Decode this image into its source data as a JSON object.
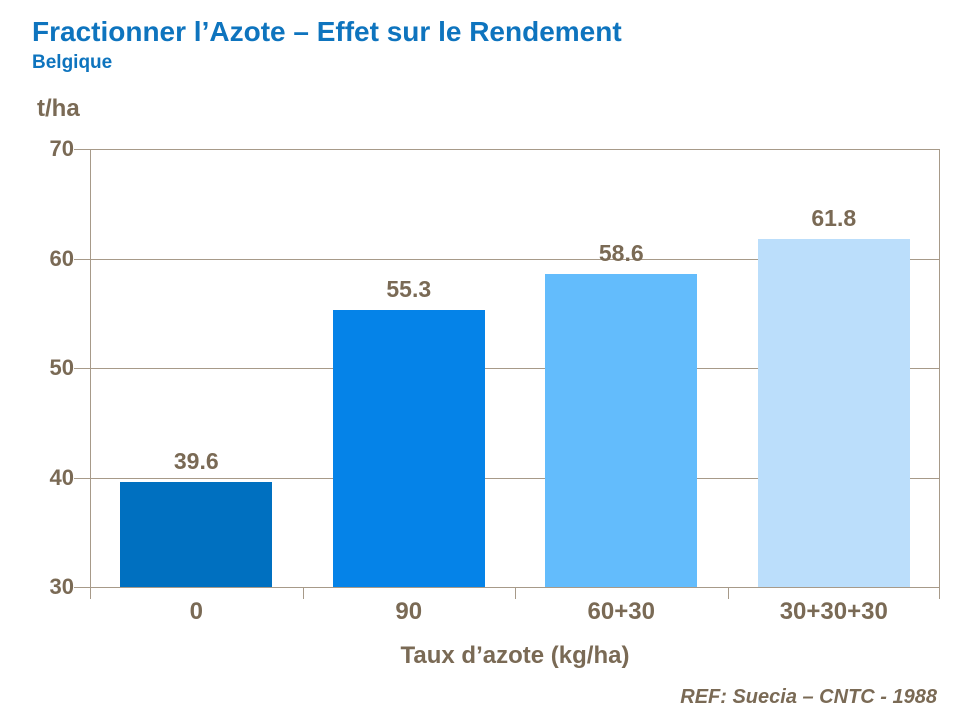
{
  "title": "Fractionner l’Azote – Effet sur le Rendement",
  "subtitle": "Belgique",
  "footer": "REF: Suecia – CNTC - 1988",
  "colors": {
    "title_blue": "#0E74BE",
    "axis_text": "#7A6A55",
    "gridline": "#A79A89",
    "bar_colors": [
      "#0070C0",
      "#0583E8",
      "#63BCFC",
      "#BBDEFB"
    ]
  },
  "chart_data": {
    "type": "bar",
    "categories": [
      "0",
      "90",
      "60+30",
      "30+30+30"
    ],
    "values": [
      39.6,
      55.3,
      58.6,
      61.8
    ],
    "bar_labels": [
      "39.6",
      "55.3",
      "58.6",
      "61.8"
    ],
    "title": "Fractionner l’Azote – Effet sur le Rendement",
    "subtitle": "Belgique",
    "xlabel": "Taux d’azote (kg/ha)",
    "ylabel": "t/ha",
    "ylim": [
      30,
      70
    ],
    "yticks": [
      30,
      40,
      50,
      60,
      70
    ],
    "grid": true,
    "legend": false,
    "reference": "REF: Suecia – CNTC - 1988"
  }
}
